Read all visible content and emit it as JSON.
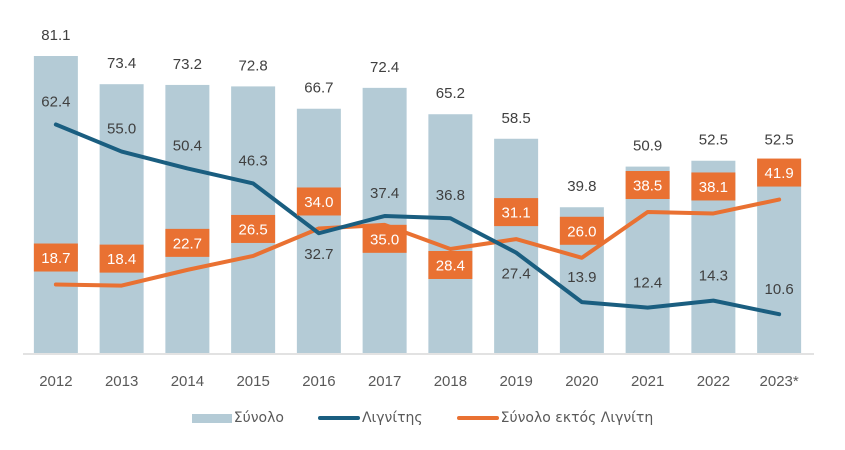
{
  "chart_data": {
    "type": "bar",
    "title": "",
    "xlabel": "",
    "ylabel": "",
    "ylim": [
      0,
      85
    ],
    "grid": false,
    "legend_position": "bottom",
    "categories": [
      "2012",
      "2013",
      "2014",
      "2015",
      "2016",
      "2017",
      "2018",
      "2019",
      "2020",
      "2021",
      "2022",
      "2023*"
    ],
    "series": [
      {
        "name": "Σύνολο",
        "type": "bar",
        "color": "#b4cbd6",
        "values": [
          81.1,
          73.4,
          73.2,
          72.8,
          66.7,
          72.4,
          65.2,
          58.5,
          39.8,
          50.9,
          52.5,
          52.5
        ],
        "labels": [
          "81.1",
          "73.4",
          "73.2",
          "72.8",
          "66.7",
          "72.4",
          "65.2",
          "58.5",
          "39.8",
          "50.9",
          "52.5",
          "52.5"
        ]
      },
      {
        "name": "Λιγνίτης",
        "type": "line",
        "color": "#1a5e80",
        "values": [
          62.4,
          55.0,
          50.4,
          46.3,
          32.7,
          37.4,
          36.8,
          27.4,
          13.9,
          12.4,
          14.3,
          10.6
        ],
        "labels": [
          "62.4",
          "55.0",
          "50.4",
          "46.3",
          "32.7",
          "37.4",
          "36.8",
          "27.4",
          "13.9",
          "12.4",
          "14.3",
          "10.6"
        ]
      },
      {
        "name": "Σύνολο εκτός Λιγνίτη",
        "type": "line",
        "color": "#e97132",
        "values": [
          18.7,
          18.4,
          22.7,
          26.5,
          34.0,
          35.0,
          28.4,
          31.1,
          26.0,
          38.5,
          38.1,
          41.9
        ],
        "labels": [
          "18.7",
          "18.4",
          "22.7",
          "26.5",
          "34.0",
          "35.0",
          "28.4",
          "31.1",
          "26.0",
          "38.5",
          "38.1",
          "41.9"
        ]
      }
    ]
  },
  "legend": {
    "items": [
      {
        "label": "Σύνολο"
      },
      {
        "label": "Λιγνίτης"
      },
      {
        "label": "Σύνολο εκτός Λιγνίτη"
      }
    ]
  }
}
